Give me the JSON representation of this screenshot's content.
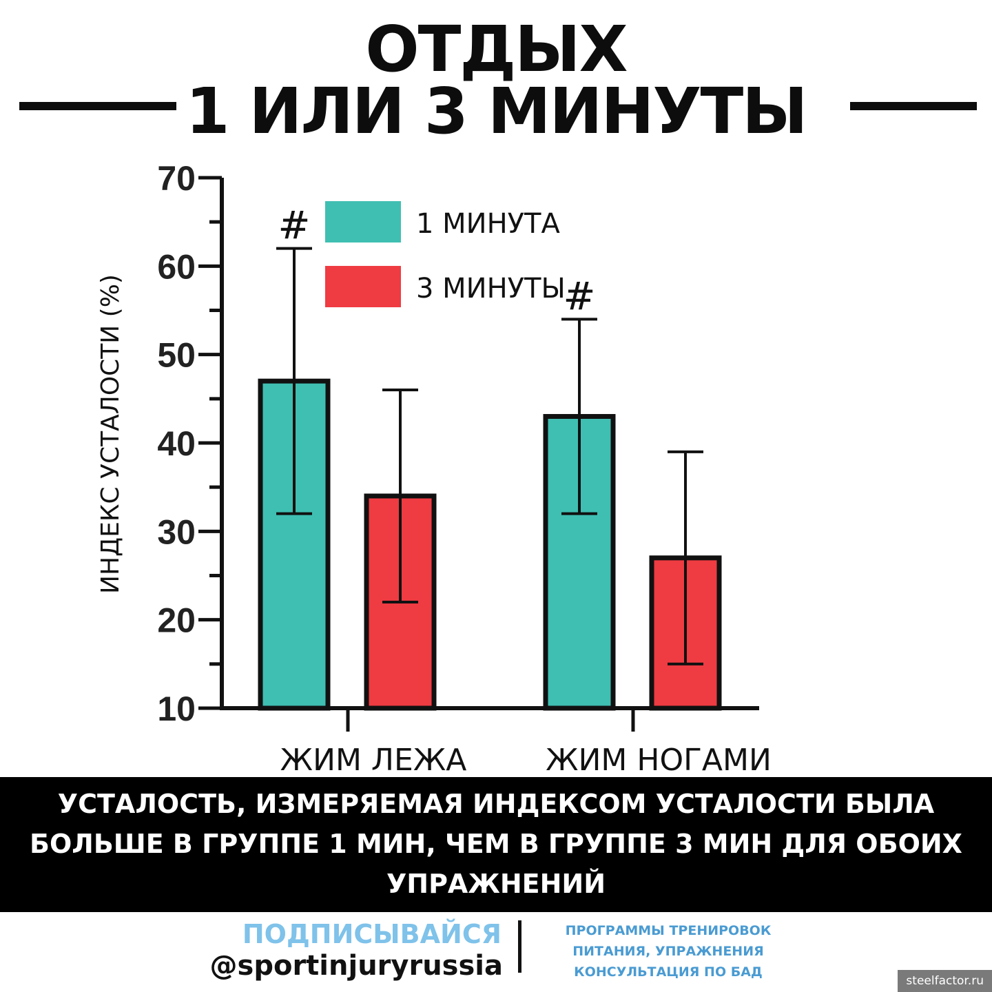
{
  "header": {
    "title_line1": "ОТДЫХ",
    "title_line2": "1 ИЛИ 3 МИНУТЫ"
  },
  "chart_data": {
    "type": "bar",
    "categories": [
      "ЖИМ ЛЕЖА",
      "ЖИМ НОГАМИ"
    ],
    "series": [
      {
        "name": "1 МИНУТА",
        "color": "#3fbfb2",
        "values": [
          47,
          43
        ],
        "error_low": [
          32,
          32
        ],
        "error_high": [
          62,
          54
        ],
        "markers": [
          "#",
          "#"
        ]
      },
      {
        "name": "3 МИНУТЫ",
        "color": "#ef3b42",
        "values": [
          34,
          27
        ],
        "error_low": [
          22,
          15
        ],
        "error_high": [
          46,
          39
        ],
        "markers": [
          "",
          ""
        ]
      }
    ],
    "ylabel": "ИНДЕКС УСТАЛОСТИ (%)",
    "xlabel": "",
    "ylim": [
      10,
      70
    ],
    "yticks": [
      10,
      20,
      30,
      40,
      50,
      60,
      70
    ],
    "legend": "top-center",
    "grid": false
  },
  "caption": {
    "line1": "УСТАЛОСТЬ, ИЗМЕРЯЕМАЯ ИНДЕКСОМ УСТАЛОСТИ БЫЛА",
    "line2": "БОЛЬШЕ В ГРУППЕ 1 МИН, ЧЕМ В ГРУППЕ 3 МИН ДЛЯ ОБОИХ",
    "line3": "УПРАЖНЕНИЙ"
  },
  "footer": {
    "subscribe": "ПОДПИСЫВАЙСЯ",
    "handle": "@sportinjuryrussia",
    "services": [
      "ПРОГРАММЫ ТРЕНИРОВОК",
      "ПИТАНИЯ, УПРАЖНЕНИЯ",
      "КОНСУЛЬТАЦИЯ ПО БАД"
    ]
  },
  "watermark": "steelfactor.ru",
  "colors": {
    "accent_teal": "#3fbfb2",
    "accent_red": "#ef3b42",
    "footer_blue": "#4a9bd2"
  }
}
